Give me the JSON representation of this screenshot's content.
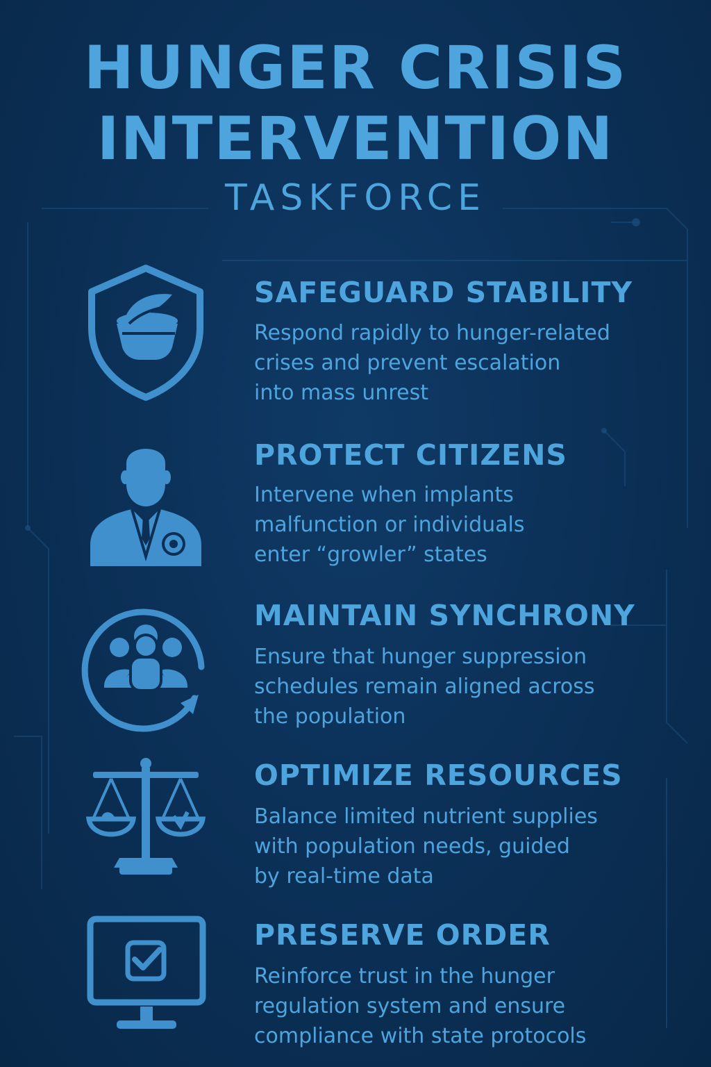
{
  "header": {
    "title_line1": "HUNGER CRISIS",
    "title_line2": "INTERVENTION",
    "subtitle": "TASKFORCE"
  },
  "colors": {
    "background": "#0b2f55",
    "accent": "#4ea4dd"
  },
  "items": [
    {
      "icon": "shield-bowl-icon",
      "heading": "SAFEGUARD STABILITY",
      "lines": [
        "Respond rapidly to hunger-related",
        "crises and prevent escalation",
        "into mass unrest"
      ]
    },
    {
      "icon": "officer-icon",
      "heading": "PROTECT CITIZENS",
      "lines": [
        "Intervene when implants",
        "malfunction or individuals",
        "enter “growler” states"
      ]
    },
    {
      "icon": "group-sync-icon",
      "heading": "MAINTAIN SYNCHRONY",
      "lines": [
        "Ensure that hunger suppression",
        "schedules remain aligned across",
        "the population"
      ]
    },
    {
      "icon": "balance-scale-icon",
      "heading": "OPTIMIZE RESOURCES",
      "lines": [
        "Balance limited nutrient supplies",
        "with population needs, guided",
        "by real-time data"
      ]
    },
    {
      "icon": "monitor-checkbox-icon",
      "heading": "PRESERVE ORDER",
      "lines": [
        "Reinforce trust in the hunger",
        "regulation system and ensure",
        "compliance with state protocols"
      ]
    }
  ]
}
